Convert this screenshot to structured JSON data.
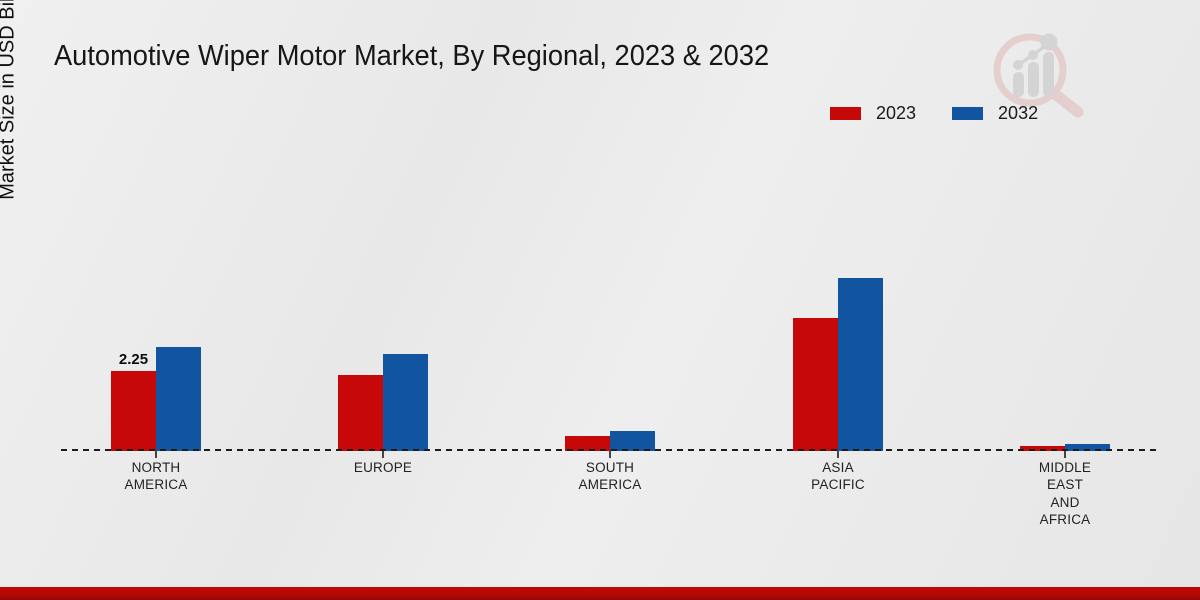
{
  "title": "Automotive Wiper Motor Market, By Regional, 2023 & 2032",
  "ylabel": "Market Size in USD Billion",
  "legend": {
    "items": [
      {
        "label": "2023",
        "color": "#c70808"
      },
      {
        "label": "2032",
        "color": "#11549f"
      }
    ],
    "position": "top-right"
  },
  "watermark": "magnifier-bar-chart-logo",
  "footer_color": "#b40707",
  "chart_data": {
    "type": "bar",
    "title": "Automotive Wiper Motor Market, By Regional, 2023 & 2032",
    "xlabel": "",
    "ylabel": "Market Size in USD Billion",
    "categories": [
      "NORTH AMERICA",
      "EUROPE",
      "SOUTH AMERICA",
      "ASIA PACIFIC",
      "MIDDLE EAST AND AFRICA"
    ],
    "category_lines": [
      [
        "NORTH",
        "AMERICA"
      ],
      [
        "EUROPE"
      ],
      [
        "SOUTH",
        "AMERICA"
      ],
      [
        "ASIA",
        "PACIFIC"
      ],
      [
        "MIDDLE",
        "EAST",
        "AND",
        "AFRICA"
      ]
    ],
    "series": [
      {
        "name": "2023",
        "color": "#c70808",
        "values": [
          2.25,
          2.14,
          0.42,
          3.74,
          0.15
        ]
      },
      {
        "name": "2032",
        "color": "#11549f",
        "values": [
          2.92,
          2.73,
          0.56,
          4.87,
          0.19
        ]
      }
    ],
    "annotations": [
      {
        "category_index": 0,
        "series_index": 0,
        "text": "2.25"
      }
    ],
    "ylim": [
      0,
      5.5
    ],
    "grid": false,
    "axis_style": "dashed-baseline-only",
    "legend_position": "top-right",
    "units": "USD Billion"
  }
}
